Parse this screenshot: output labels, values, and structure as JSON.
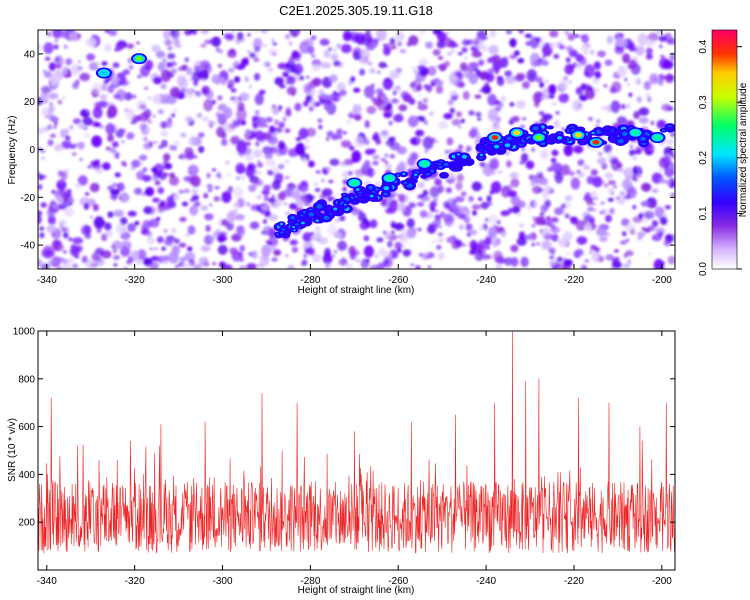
{
  "title": "C2E1.2025.305.19.11.G18",
  "chart_data": [
    {
      "type": "heatmap",
      "xlabel": "Height of straight line (km)",
      "ylabel": "Frequency (Hz)",
      "xlim": [
        -342,
        -197
      ],
      "ylim": [
        -50,
        50
      ],
      "xticks": [
        -340,
        -320,
        -300,
        -280,
        -260,
        -240,
        -220,
        -200
      ],
      "yticks": [
        -40,
        -20,
        0,
        20,
        40
      ],
      "colorbar": {
        "label": "Normalized spectral amplitude",
        "range": [
          0.0,
          0.43
        ],
        "ticks": [
          0.0,
          0.1,
          0.2,
          0.3,
          0.4
        ],
        "tick_labels": [
          "0.0",
          "0.1",
          "0.2",
          "0.3",
          "0.4"
        ],
        "colors": [
          "#ffffff",
          "#c8a0ff",
          "#8a2be2",
          "#5a00ff",
          "#0000ff",
          "#00ffff",
          "#00ff00",
          "#ffff00",
          "#ff0000",
          "#ff0066"
        ]
      },
      "ridge": [
        {
          "x": -288,
          "y": -36
        },
        {
          "x": -280,
          "y": -28
        },
        {
          "x": -270,
          "y": -20
        },
        {
          "x": -260,
          "y": -14
        },
        {
          "x": -250,
          "y": -8
        },
        {
          "x": -240,
          "y": 0
        },
        {
          "x": -230,
          "y": 6
        },
        {
          "x": -220,
          "y": 6
        },
        {
          "x": -210,
          "y": 6
        },
        {
          "x": -198,
          "y": 6
        }
      ],
      "hotspots": [
        {
          "x": -319,
          "y": 38,
          "v": 0.25
        },
        {
          "x": -327,
          "y": 32,
          "v": 0.18
        },
        {
          "x": -262,
          "y": -12,
          "v": 0.22
        },
        {
          "x": -254,
          "y": -6,
          "v": 0.24
        },
        {
          "x": -238,
          "y": 5,
          "v": 0.38
        },
        {
          "x": -233,
          "y": 7,
          "v": 0.32
        },
        {
          "x": -228,
          "y": 5,
          "v": 0.28
        },
        {
          "x": -219,
          "y": 6,
          "v": 0.34
        },
        {
          "x": -215,
          "y": 3,
          "v": 0.36
        },
        {
          "x": -206,
          "y": 7,
          "v": 0.22
        },
        {
          "x": -201,
          "y": 5,
          "v": 0.2
        },
        {
          "x": -270,
          "y": -14,
          "v": 0.2
        }
      ]
    },
    {
      "type": "line",
      "xlabel": "Height of straight line (km)",
      "ylabel": "SNR (10 * v/v)",
      "xlim": [
        -342,
        -197
      ],
      "ylim": [
        0,
        1000
      ],
      "xticks": [
        -340,
        -320,
        -300,
        -280,
        -260,
        -240,
        -220,
        -200
      ],
      "yticks": [
        200,
        400,
        600,
        800,
        1000
      ],
      "series": [
        {
          "color": "#ee2222",
          "baseline": 220,
          "spikes": [
            {
              "x": -339,
              "y": 720
            },
            {
              "x": -333,
              "y": 520
            },
            {
              "x": -321,
              "y": 540
            },
            {
              "x": -314,
              "y": 610
            },
            {
              "x": -304,
              "y": 620
            },
            {
              "x": -291,
              "y": 740
            },
            {
              "x": -283,
              "y": 700
            },
            {
              "x": -270,
              "y": 580
            },
            {
              "x": -257,
              "y": 620
            },
            {
              "x": -247,
              "y": 650
            },
            {
              "x": -238,
              "y": 700
            },
            {
              "x": -234,
              "y": 1000
            },
            {
              "x": -231,
              "y": 790
            },
            {
              "x": -228,
              "y": 800
            },
            {
              "x": -219,
              "y": 720
            },
            {
              "x": -212,
              "y": 700
            },
            {
              "x": -205,
              "y": 600
            },
            {
              "x": -199,
              "y": 700
            }
          ]
        }
      ]
    }
  ]
}
